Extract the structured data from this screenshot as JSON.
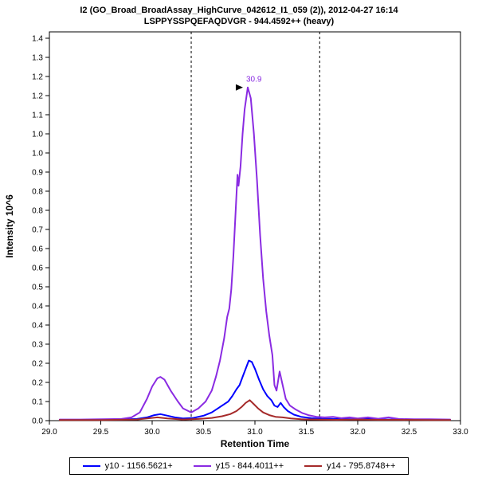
{
  "title": {
    "line1": "I2 (GO_Broad_BroadAssay_HighCurve_042612_I1_059 (2)), 2012-04-27 16:14",
    "line2": "LSPPYSSPQEFAQDVGR - 944.4592++ (heavy)"
  },
  "legend": {
    "items": [
      {
        "label": "y10 - 1156.5621+"
      },
      {
        "label": "y15 - 844.4011++"
      },
      {
        "label": "y14 - 795.8748++"
      }
    ]
  },
  "chart_data": {
    "type": "line",
    "xlabel": "Retention Time",
    "ylabel": "Intensity 10^6",
    "xlim": [
      29.0,
      33.0
    ],
    "ylim": [
      0,
      1.4
    ],
    "grid": false,
    "legend_position": "bottom",
    "xticks": [
      {
        "v": 29.0,
        "label": "29.0"
      },
      {
        "v": 29.5,
        "label": "29.5"
      },
      {
        "v": 30.0,
        "label": "30.0"
      },
      {
        "v": 30.5,
        "label": "30.5"
      },
      {
        "v": 31.0,
        "label": "31.0"
      },
      {
        "v": 31.5,
        "label": "31.5"
      },
      {
        "v": 32.0,
        "label": "32.0"
      },
      {
        "v": 32.5,
        "label": "32.5"
      },
      {
        "v": 33.0,
        "label": "33.0"
      }
    ],
    "ytick_labels_bottom_to_top": [
      "0.0",
      "0.1",
      "0.2",
      "0.2",
      "0.3",
      "0.4",
      "0.4",
      "0.5",
      "0.6",
      "0.6",
      "0.7",
      "0.8",
      "0.8",
      "0.9",
      "1.0",
      "1.0",
      "1.1",
      "1.2",
      "1.2",
      "1.3",
      "1.4"
    ],
    "integration_boundaries": [
      30.38,
      31.63
    ],
    "peak_annotation": {
      "x": 30.93,
      "y": 1.22,
      "label": "30.9",
      "arrow_color": "#000000",
      "text_color": "#8a2be2"
    },
    "series": [
      {
        "name": "y10 - 1156.5621+",
        "color": "#0000ff",
        "points": [
          [
            29.1,
            0.003
          ],
          [
            29.4,
            0.003
          ],
          [
            29.7,
            0.004
          ],
          [
            29.85,
            0.006
          ],
          [
            29.95,
            0.012
          ],
          [
            30.02,
            0.02
          ],
          [
            30.08,
            0.024
          ],
          [
            30.15,
            0.018
          ],
          [
            30.22,
            0.012
          ],
          [
            30.3,
            0.008
          ],
          [
            30.4,
            0.01
          ],
          [
            30.5,
            0.018
          ],
          [
            30.58,
            0.03
          ],
          [
            30.64,
            0.045
          ],
          [
            30.7,
            0.06
          ],
          [
            30.74,
            0.07
          ],
          [
            30.78,
            0.09
          ],
          [
            30.82,
            0.115
          ],
          [
            30.85,
            0.13
          ],
          [
            30.88,
            0.16
          ],
          [
            30.91,
            0.19
          ],
          [
            30.94,
            0.22
          ],
          [
            30.97,
            0.215
          ],
          [
            31.0,
            0.19
          ],
          [
            31.04,
            0.15
          ],
          [
            31.08,
            0.115
          ],
          [
            31.12,
            0.09
          ],
          [
            31.16,
            0.075
          ],
          [
            31.19,
            0.055
          ],
          [
            31.22,
            0.05
          ],
          [
            31.25,
            0.065
          ],
          [
            31.28,
            0.05
          ],
          [
            31.32,
            0.035
          ],
          [
            31.38,
            0.022
          ],
          [
            31.45,
            0.014
          ],
          [
            31.55,
            0.009
          ],
          [
            31.65,
            0.007
          ],
          [
            31.8,
            0.006
          ],
          [
            31.95,
            0.005
          ],
          [
            32.1,
            0.006
          ],
          [
            32.25,
            0.004
          ],
          [
            32.4,
            0.004
          ],
          [
            32.6,
            0.003
          ],
          [
            32.9,
            0.003
          ]
        ]
      },
      {
        "name": "y15 - 844.4011++",
        "color": "#8a2be2",
        "points": [
          [
            29.1,
            0.004
          ],
          [
            29.3,
            0.004
          ],
          [
            29.5,
            0.005
          ],
          [
            29.7,
            0.006
          ],
          [
            29.8,
            0.012
          ],
          [
            29.88,
            0.03
          ],
          [
            29.95,
            0.08
          ],
          [
            30.0,
            0.125
          ],
          [
            30.05,
            0.155
          ],
          [
            30.08,
            0.16
          ],
          [
            30.12,
            0.15
          ],
          [
            30.18,
            0.11
          ],
          [
            30.25,
            0.07
          ],
          [
            30.3,
            0.045
          ],
          [
            30.38,
            0.03
          ],
          [
            30.45,
            0.045
          ],
          [
            30.52,
            0.07
          ],
          [
            30.58,
            0.11
          ],
          [
            30.62,
            0.16
          ],
          [
            30.66,
            0.22
          ],
          [
            30.7,
            0.3
          ],
          [
            30.73,
            0.38
          ],
          [
            30.75,
            0.41
          ],
          [
            30.77,
            0.48
          ],
          [
            30.79,
            0.6
          ],
          [
            30.81,
            0.75
          ],
          [
            30.83,
            0.9
          ],
          [
            30.84,
            0.86
          ],
          [
            30.86,
            0.93
          ],
          [
            30.88,
            1.05
          ],
          [
            30.9,
            1.14
          ],
          [
            30.93,
            1.22
          ],
          [
            30.96,
            1.18
          ],
          [
            30.99,
            1.05
          ],
          [
            31.02,
            0.88
          ],
          [
            31.05,
            0.68
          ],
          [
            31.08,
            0.52
          ],
          [
            31.11,
            0.4
          ],
          [
            31.14,
            0.31
          ],
          [
            31.17,
            0.24
          ],
          [
            31.19,
            0.13
          ],
          [
            31.21,
            0.11
          ],
          [
            31.24,
            0.18
          ],
          [
            31.27,
            0.13
          ],
          [
            31.3,
            0.08
          ],
          [
            31.34,
            0.055
          ],
          [
            31.4,
            0.04
          ],
          [
            31.46,
            0.028
          ],
          [
            31.52,
            0.02
          ],
          [
            31.6,
            0.014
          ],
          [
            31.68,
            0.012
          ],
          [
            31.76,
            0.014
          ],
          [
            31.84,
            0.009
          ],
          [
            31.92,
            0.012
          ],
          [
            32.0,
            0.008
          ],
          [
            32.1,
            0.012
          ],
          [
            32.2,
            0.007
          ],
          [
            32.3,
            0.012
          ],
          [
            32.4,
            0.006
          ],
          [
            32.55,
            0.005
          ],
          [
            32.7,
            0.005
          ],
          [
            32.9,
            0.004
          ]
        ]
      },
      {
        "name": "y14 - 795.8748++",
        "color": "#a52a2a",
        "points": [
          [
            29.1,
            0.002
          ],
          [
            29.5,
            0.002
          ],
          [
            29.85,
            0.004
          ],
          [
            29.95,
            0.008
          ],
          [
            30.05,
            0.012
          ],
          [
            30.15,
            0.008
          ],
          [
            30.3,
            0.004
          ],
          [
            30.45,
            0.006
          ],
          [
            30.58,
            0.01
          ],
          [
            30.68,
            0.016
          ],
          [
            30.76,
            0.024
          ],
          [
            30.82,
            0.035
          ],
          [
            30.87,
            0.05
          ],
          [
            30.91,
            0.065
          ],
          [
            30.95,
            0.075
          ],
          [
            30.99,
            0.06
          ],
          [
            31.03,
            0.045
          ],
          [
            31.08,
            0.03
          ],
          [
            31.14,
            0.02
          ],
          [
            31.2,
            0.014
          ],
          [
            31.27,
            0.012
          ],
          [
            31.35,
            0.008
          ],
          [
            31.45,
            0.005
          ],
          [
            31.6,
            0.004
          ],
          [
            31.8,
            0.003
          ],
          [
            32.0,
            0.004
          ],
          [
            32.2,
            0.003
          ],
          [
            32.4,
            0.003
          ],
          [
            32.7,
            0.002
          ],
          [
            32.9,
            0.002
          ]
        ]
      }
    ]
  }
}
